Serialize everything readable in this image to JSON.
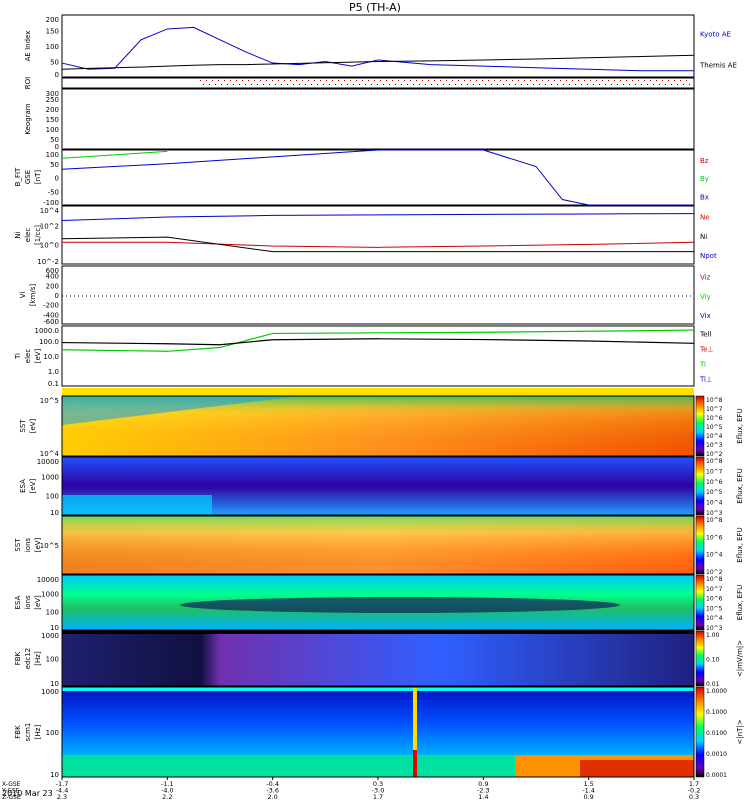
{
  "title": "P5 (TH-A)",
  "date_label": "2010 Mar 23",
  "colors": {
    "blue": "#0000cc",
    "red": "#cc0000",
    "green": "#00cc00",
    "black": "#000000"
  },
  "footer": {
    "row_labels": [
      "X-GSE",
      "Y-GSE",
      "Z-GSE",
      "hhmm"
    ],
    "x_gse": [
      "-1.7",
      "-1.1",
      "-0.4",
      "0.3",
      "0.9",
      "1.5",
      "1.7"
    ],
    "y_gse": [
      "-4.4",
      "-4.0",
      "-3.6",
      "-3.0",
      "-2.3",
      "-1.4",
      "-0.2"
    ],
    "z_gse": [
      "2.3",
      "2.2",
      "2.0",
      "1.7",
      "1.4",
      "0.9",
      "0.3"
    ],
    "hhmm": [
      "1800",
      "1820",
      "1840",
      "1900",
      "1920",
      "1940",
      "2000"
    ]
  },
  "panels": {
    "ae": {
      "ylabel": "AE Index",
      "ticks": [
        "200",
        "150",
        "100",
        "50",
        "0"
      ],
      "legend": [
        "Kyoto AE",
        "Themis AE"
      ]
    },
    "roi": {
      "ylabel": "ROI"
    },
    "keogram": {
      "ylabel": "Keogram",
      "ticks": [
        "300",
        "250",
        "200",
        "150",
        "100",
        "50",
        "0"
      ]
    },
    "bfit": {
      "ylabel1": "B_FIT",
      "ylabel2": "GSE",
      "ylabel3": "[nT]",
      "ticks": [
        "100",
        "50",
        "0",
        "-50",
        "-100"
      ],
      "legend": [
        "Bz",
        "By",
        "Bx"
      ]
    },
    "density": {
      "ylabel1": "Ni",
      "ylabel2": "elec",
      "ylabel3": "[1/cc]",
      "ticks": [
        "10^4",
        "10^2",
        "10^0",
        "10^-2"
      ],
      "legend": [
        "Ne",
        "Ni",
        "Npot"
      ]
    },
    "velocity": {
      "ylabel1": "Vi",
      "ylabel2": "[km/s]",
      "ticks": [
        "600",
        "400",
        "200",
        "0",
        "-200",
        "-400",
        "-600"
      ],
      "legend": [
        "Viz",
        "Viy",
        "Vix"
      ]
    },
    "temp": {
      "ylabel1": "Ti",
      "ylabel2": "elec",
      "ylabel3": "[eV]",
      "ticks": [
        "1000.0",
        "100.0",
        "10.0",
        "1.0",
        "0.1"
      ],
      "legend": [
        "Tell",
        "Te⊥",
        "Ti",
        "Ti⊥"
      ]
    },
    "sst_e": {
      "ylabel1": "SST",
      "ylabel2": "[eV]",
      "ticks": [
        "10^5",
        "10^4"
      ],
      "cbar": [
        "10^8",
        "10^7",
        "10^6",
        "10^5",
        "10^4",
        "10^3",
        "10^2"
      ],
      "cbar_label": "Eflux, EFU"
    },
    "esa_e": {
      "ylabel1": "ESA",
      "ylabel2": "[eV]",
      "ticks": [
        "10000",
        "1000",
        "100",
        "10"
      ],
      "cbar": [
        "10^8",
        "10^7",
        "10^6",
        "10^5",
        "10^4",
        "10^3"
      ],
      "cbar_label": "Eflux, EFU"
    },
    "sst_i": {
      "ylabel1": "SST",
      "ylabel2": "ions",
      "ylabel3": "[eV]",
      "ticks": [
        "10^5"
      ],
      "cbar": [
        "10^8",
        "10^6",
        "10^4",
        "10^2"
      ],
      "cbar_label": "Eflux, EFU"
    },
    "esa_i": {
      "ylabel1": "ESA",
      "ylabel2": "ions",
      "ylabel3": "[eV]",
      "ticks": [
        "10000",
        "1000",
        "100",
        "10"
      ],
      "cbar": [
        "10^8",
        "10^7",
        "10^6",
        "10^5",
        "10^4",
        "10^3"
      ],
      "cbar_label": "Eflux, EFU"
    },
    "fbk_e": {
      "ylabel1": "FBK",
      "ylabel2": "edc12",
      "ylabel3": "[Hz]",
      "ticks": [
        "1000",
        "100",
        "10"
      ],
      "cbar": [
        "1.00",
        "0.10",
        "0.01"
      ],
      "cbar_label": "<|mV/m|>"
    },
    "fbk_b": {
      "ylabel1": "FBK",
      "ylabel2": "scm1",
      "ylabel3": "[Hz]",
      "ticks": [
        "1000",
        "100",
        "10"
      ],
      "cbar": [
        "1.0000",
        "0.1000",
        "0.0100",
        "0.0010",
        "0.0001"
      ],
      "cbar_label": "<|nT|>"
    }
  },
  "chart_data": [
    {
      "type": "line",
      "title": "AE Index",
      "x": [
        "1800",
        "1805",
        "1810",
        "1815",
        "1820",
        "1825",
        "1830",
        "1835",
        "1840",
        "1845",
        "1850",
        "1855",
        "1900",
        "1910",
        "1920",
        "1930",
        "1940",
        "1950",
        "2000"
      ],
      "series": [
        {
          "name": "Kyoto AE",
          "values": [
            45,
            25,
            28,
            120,
            155,
            160,
            120,
            80,
            45,
            40,
            50,
            35,
            55,
            40,
            35,
            30,
            25,
            20,
            20
          ]
        },
        {
          "name": "Themis AE",
          "values": [
            25,
            28,
            30,
            32,
            35,
            38,
            40,
            40,
            42,
            44,
            46,
            48,
            50,
            52,
            55,
            58,
            62,
            66,
            70
          ]
        }
      ],
      "ylim": [
        0,
        200
      ]
    },
    {
      "type": "line",
      "title": "B_FIT GSE",
      "x": [
        "1800",
        "1820",
        "1840",
        "1900",
        "1920",
        "1930",
        "1935",
        "1940",
        "2000"
      ],
      "series": [
        {
          "name": "Bz",
          "values": [
            null,
            null,
            null,
            null,
            null,
            null,
            null,
            null,
            null
          ]
        },
        {
          "name": "By",
          "values": [
            70,
            95,
            null,
            null,
            null,
            null,
            null,
            null,
            null
          ]
        },
        {
          "name": "Bx",
          "values": [
            30,
            50,
            75,
            100,
            100,
            40,
            -80,
            -100,
            -100
          ]
        }
      ],
      "ylim": [
        -100,
        100
      ]
    },
    {
      "type": "line",
      "title": "Density",
      "x": [
        "1800",
        "1820",
        "1840",
        "1900",
        "1920",
        "1940",
        "2000"
      ],
      "series": [
        {
          "name": "Ne",
          "values": [
            1,
            1,
            0.3,
            0.2,
            0.3,
            0.5,
            1
          ]
        },
        {
          "name": "Ni",
          "values": [
            3,
            5,
            0.05,
            0.05,
            0.05,
            0.05,
            0.05
          ]
        },
        {
          "name": "Npot",
          "values": [
            1000,
            3000,
            5000,
            6000,
            7000,
            8000,
            9000
          ]
        }
      ]
    },
    {
      "type": "line",
      "title": "Temperature",
      "x": [
        "1800",
        "1820",
        "1830",
        "1840",
        "1900",
        "1920",
        "1940",
        "2000"
      ],
      "series": [
        {
          "name": "Ti",
          "values": [
            40,
            30,
            60,
            800,
            900,
            1000,
            1200,
            1500
          ]
        },
        {
          "name": "Tell",
          "values": [
            150,
            120,
            100,
            250,
            300,
            260,
            200,
            130
          ]
        }
      ]
    }
  ]
}
